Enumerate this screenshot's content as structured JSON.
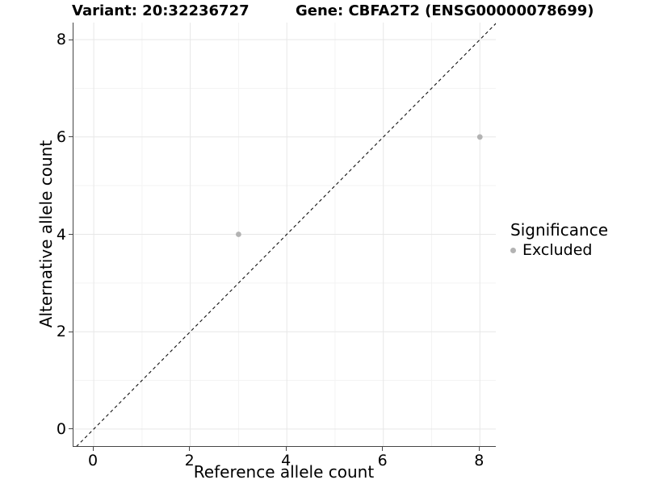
{
  "titles": {
    "variant": "Variant: 20:32236727",
    "gene": "Gene: CBFA2T2 (ENSG00000078699)"
  },
  "axes": {
    "x_label": "Reference allele count",
    "y_label": "Alternative allele count"
  },
  "legend": {
    "title": "Significance",
    "items": [
      {
        "label": "Excluded",
        "color": "#b3b3b3"
      }
    ]
  },
  "colors": {
    "background": "#ffffff",
    "grid_major": "#e7e7e7",
    "grid_minor": "#f3f3f3",
    "axis_line": "#454545",
    "identity_line": "#111111",
    "point_excluded": "#b3b3b3",
    "text": "#000000"
  },
  "chart_data": {
    "type": "scatter",
    "title": "Variant: 20:32236727 / Gene: CBFA2T2 (ENSG00000078699)",
    "xlabel": "Reference allele count",
    "ylabel": "Alternative allele count",
    "xlim": [
      -0.42,
      8.33
    ],
    "ylim": [
      -0.35,
      8.35
    ],
    "x_ticks": [
      0,
      2,
      4,
      6,
      8
    ],
    "y_ticks": [
      0,
      2,
      4,
      6,
      8
    ],
    "x_minor_gridlines": [
      1,
      3,
      5,
      7
    ],
    "y_minor_gridlines": [
      1,
      3,
      5,
      7
    ],
    "grid": true,
    "legend_position": "right",
    "identity_line": {
      "slope": 1,
      "intercept": 0,
      "style": "dashed"
    },
    "series": [
      {
        "name": "Excluded",
        "color": "#b3b3b3",
        "points": [
          {
            "x": 3,
            "y": 4
          },
          {
            "x": 8,
            "y": 6
          }
        ]
      }
    ]
  }
}
